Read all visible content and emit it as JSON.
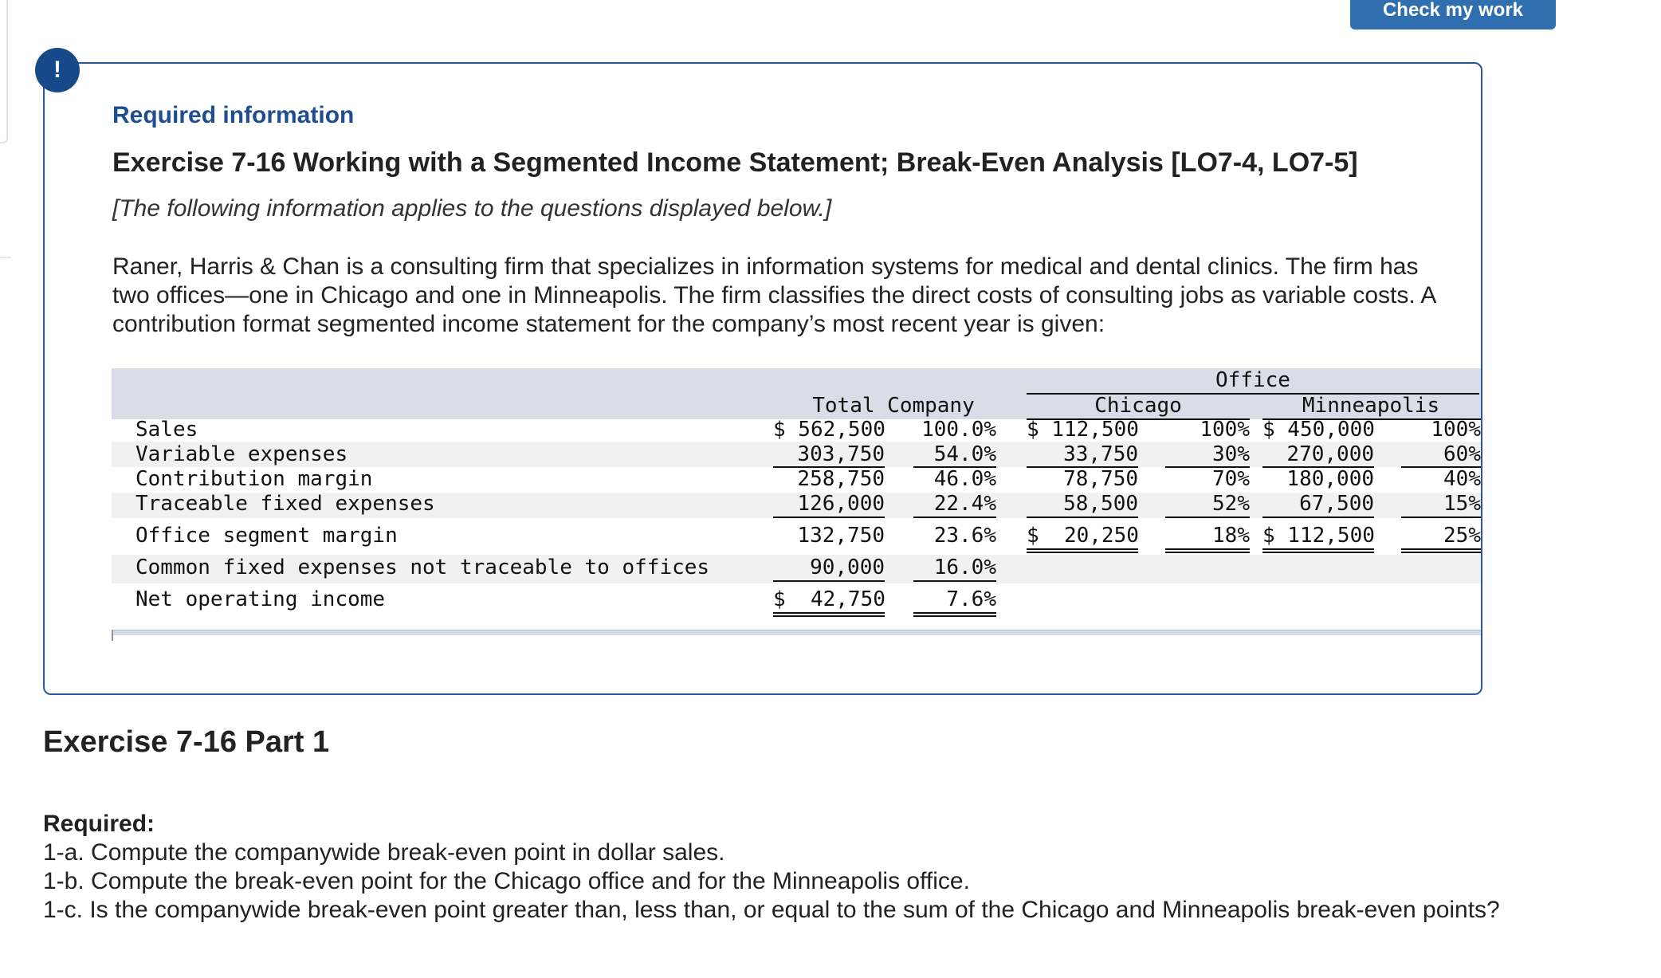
{
  "toolbar": {
    "check_button_label": "Check my work"
  },
  "alert": {
    "badge_text": "!"
  },
  "panel": {
    "required_info_label": "Required information",
    "exercise_title": "Exercise 7-16 Working with a Segmented Income Statement; Break-Even Analysis [LO7-4, LO7-5]",
    "note": "[The following information applies to the questions displayed below.]",
    "intro": "Raner, Harris & Chan is a consulting firm that specializes in information systems for medical and dental clinics. The firm has two offices—one in Chicago and one in Minneapolis. The firm classifies the direct costs of consulting jobs as variable costs. A contribution format segmented income statement for the company’s most recent year is given:"
  },
  "statement": {
    "headers": {
      "office": "Office",
      "total_company": "Total Company",
      "chicago": "Chicago",
      "minneapolis": "Minneapolis"
    },
    "rows": [
      {
        "label": "Sales",
        "total": "$ 562,500",
        "total_pct": "100.0%",
        "chicago": "$ 112,500",
        "chicago_pct": "100%",
        "minneapolis": "$ 450,000",
        "minneapolis_pct": "100%"
      },
      {
        "label": "Variable expenses",
        "total": "303,750",
        "total_pct": "54.0%",
        "chicago": "33,750",
        "chicago_pct": "30%",
        "minneapolis": "270,000",
        "minneapolis_pct": "60%"
      },
      {
        "label": "Contribution margin",
        "total": "258,750",
        "total_pct": "46.0%",
        "chicago": "78,750",
        "chicago_pct": "70%",
        "minneapolis": "180,000",
        "minneapolis_pct": "40%"
      },
      {
        "label": "Traceable fixed expenses",
        "total": "126,000",
        "total_pct": "22.4%",
        "chicago": "58,500",
        "chicago_pct": "52%",
        "minneapolis": "67,500",
        "minneapolis_pct": "15%"
      },
      {
        "label": "Office segment margin",
        "total": "132,750",
        "total_pct": "23.6%",
        "chicago": "$  20,250",
        "chicago_pct": "18%",
        "minneapolis": "$ 112,500",
        "minneapolis_pct": "25%"
      },
      {
        "label": "Common fixed expenses not traceable to offices",
        "total": "90,000",
        "total_pct": "16.0%"
      },
      {
        "label": "Net operating income",
        "total": "$  42,750",
        "total_pct": "7.6%"
      }
    ]
  },
  "part": {
    "title": "Exercise 7-16 Part 1"
  },
  "required": {
    "label": "Required:",
    "questions": [
      "1-a. Compute the companywide break-even point in dollar sales.",
      "1-b. Compute the break-even point for the Chicago office and for the Minneapolis office.",
      "1-c. Is the companywide break-even point greater than, less than, or equal to the sum of the Chicago and Minneapolis break-even points?"
    ]
  }
}
